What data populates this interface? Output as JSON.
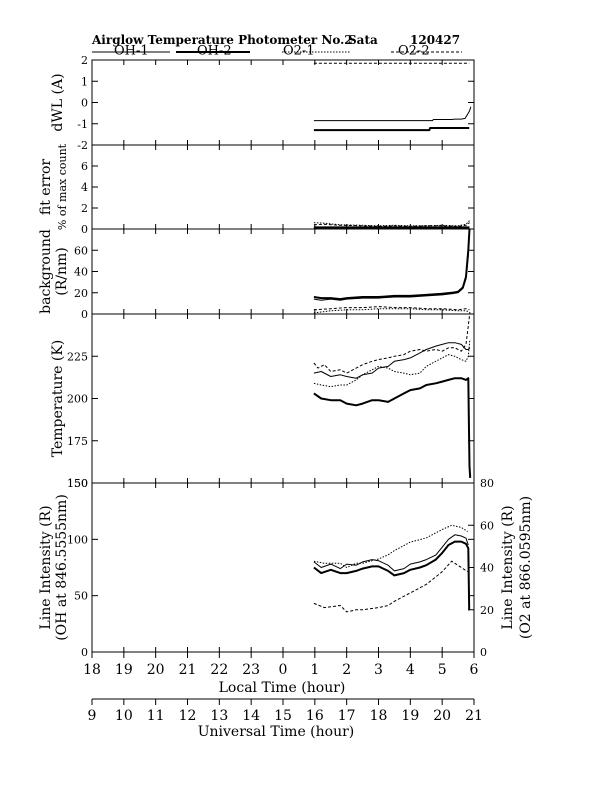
{
  "header": {
    "title": "Airglow Temperature Photometer No.2",
    "station": "Sata",
    "date_code": "120427"
  },
  "legend": [
    {
      "label": "OH-1",
      "style": "solid",
      "width": 1
    },
    {
      "label": "OH-2",
      "style": "solid",
      "width": 2
    },
    {
      "label": "O2-1",
      "style": "dotted",
      "width": 1
    },
    {
      "label": "O2-2",
      "style": "dashed",
      "width": 1
    }
  ],
  "colors": {
    "ink": "#000000",
    "background": "#ffffff"
  },
  "chart_data": [
    {
      "type": "line",
      "panel": "dwl",
      "ylabel": "dWL (A)",
      "ylim": [
        -2,
        2
      ],
      "yticks": [
        "-2",
        "-1",
        "0",
        "1",
        "2"
      ],
      "series": [
        {
          "name": "OH-1",
          "x": [
            24.97,
            26.5,
            27.5,
            28.5,
            28.7,
            28.72,
            29.3,
            29.4,
            29.6,
            29.72,
            29.8,
            29.86,
            29.9
          ],
          "y": [
            -0.85,
            -0.85,
            -0.85,
            -0.85,
            -0.85,
            -0.8,
            -0.8,
            -0.78,
            -0.78,
            -0.75,
            -0.55,
            -0.4,
            -0.2
          ]
        },
        {
          "name": "OH-2",
          "x": [
            24.97,
            26.5,
            27.5,
            28.3,
            28.6,
            28.62,
            29.2,
            29.6,
            29.75,
            29.85
          ],
          "y": [
            -1.3,
            -1.3,
            -1.3,
            -1.3,
            -1.3,
            -1.2,
            -1.2,
            -1.2,
            -1.2,
            -1.2
          ]
        },
        {
          "name": "O2-1",
          "x": [
            24.97,
            26.5,
            28.0,
            29.5,
            29.85
          ],
          "y": [
            2.0,
            2.0,
            2.0,
            2.0,
            2.0
          ]
        },
        {
          "name": "O2-2",
          "x": [
            24.97,
            26.5,
            28.0,
            29.5,
            29.85
          ],
          "y": [
            1.85,
            1.85,
            1.85,
            1.85,
            1.85
          ]
        }
      ]
    },
    {
      "type": "line",
      "panel": "fit-error",
      "ylabel": "fit error",
      "ylabel2": "% of max count",
      "ylim": [
        0,
        8
      ],
      "yticks": [
        "0",
        "2",
        "4",
        "6"
      ],
      "series": [
        {
          "name": "OH-1",
          "x": [
            24.97,
            26.0,
            27.0,
            28.0,
            29.0,
            29.6,
            29.8,
            29.86
          ],
          "y": [
            0.1,
            0.1,
            0.1,
            0.1,
            0.1,
            0.1,
            0.1,
            0.1
          ]
        },
        {
          "name": "OH-2",
          "x": [
            24.97,
            26.0,
            27.0,
            28.0,
            29.0,
            29.6,
            29.8,
            29.86
          ],
          "y": [
            0.15,
            0.15,
            0.15,
            0.15,
            0.15,
            0.15,
            0.15,
            0.15
          ]
        },
        {
          "name": "O2-1",
          "x": [
            24.97,
            25.3,
            25.8,
            26.5,
            27.0,
            27.5,
            28.0,
            28.5,
            29.0,
            29.5,
            29.75,
            29.86
          ],
          "y": [
            0.6,
            0.55,
            0.4,
            0.35,
            0.3,
            0.35,
            0.3,
            0.3,
            0.35,
            0.3,
            0.45,
            0.8
          ]
        },
        {
          "name": "O2-2",
          "x": [
            24.97,
            25.3,
            25.8,
            26.5,
            27.0,
            27.5,
            28.0,
            28.5,
            29.0,
            29.5,
            29.75,
            29.86
          ],
          "y": [
            0.4,
            0.45,
            0.35,
            0.3,
            0.25,
            0.3,
            0.25,
            0.3,
            0.3,
            0.25,
            0.35,
            0.6
          ]
        }
      ]
    },
    {
      "type": "line",
      "panel": "background",
      "ylabel": "background",
      "ylabel2": "(R/nm)",
      "ylim": [
        0,
        80
      ],
      "yticks": [
        "0",
        "20",
        "40",
        "60"
      ],
      "series": [
        {
          "name": "OH-1",
          "x": [
            24.97,
            25.2,
            25.5,
            25.8,
            26.0,
            26.5,
            27.0,
            27.5,
            28.0,
            28.5,
            29.0,
            29.3,
            29.5,
            29.65,
            29.75,
            29.82,
            29.86
          ],
          "y": [
            14,
            13,
            14,
            13,
            14,
            15,
            15,
            16,
            16,
            17,
            18,
            19,
            20,
            24,
            33,
            55,
            80
          ]
        },
        {
          "name": "OH-2",
          "x": [
            24.97,
            25.2,
            25.5,
            25.8,
            26.0,
            26.5,
            27.0,
            27.5,
            28.0,
            28.5,
            29.0,
            29.3,
            29.5,
            29.65,
            29.75,
            29.82,
            29.86
          ],
          "y": [
            16,
            15,
            15,
            14,
            15,
            16,
            16,
            17,
            17,
            18,
            19,
            20,
            21,
            25,
            35,
            60,
            80
          ]
        },
        {
          "name": "O2-1",
          "x": [
            24.97,
            25.5,
            26.0,
            26.5,
            27.0,
            27.5,
            28.0,
            28.5,
            29.0,
            29.5,
            29.75,
            29.86
          ],
          "y": [
            1,
            3,
            4,
            4,
            5,
            5,
            5,
            4,
            4,
            3,
            3,
            2
          ]
        },
        {
          "name": "O2-2",
          "x": [
            24.97,
            25.5,
            26.0,
            26.5,
            27.0,
            27.5,
            28.0,
            28.5,
            29.0,
            29.5,
            29.75,
            29.86
          ],
          "y": [
            4,
            5,
            6,
            6,
            7,
            6,
            6,
            5,
            5,
            4,
            5,
            4
          ]
        }
      ]
    },
    {
      "type": "line",
      "panel": "temperature",
      "ylabel": "Temperature (K)",
      "ylim": [
        150,
        250
      ],
      "yticks": [
        "150",
        "175",
        "200",
        "225"
      ],
      "series": [
        {
          "name": "OH-1",
          "x": [
            24.97,
            25.2,
            25.5,
            25.8,
            26.0,
            26.3,
            26.5,
            26.8,
            27.0,
            27.3,
            27.5,
            27.8,
            28.0,
            28.3,
            28.5,
            28.8,
            29.0,
            29.2,
            29.4,
            29.6,
            29.75,
            29.82,
            29.87
          ],
          "y": [
            215,
            216,
            213,
            214,
            213,
            212,
            214,
            215,
            218,
            219,
            222,
            223,
            224,
            227,
            229,
            231,
            232,
            233,
            233,
            232,
            229,
            229,
            230
          ]
        },
        {
          "name": "OH-2",
          "x": [
            24.97,
            25.2,
            25.5,
            25.8,
            26.0,
            26.3,
            26.5,
            26.8,
            27.0,
            27.3,
            27.5,
            27.8,
            28.0,
            28.3,
            28.5,
            28.8,
            29.0,
            29.2,
            29.4,
            29.6,
            29.75,
            29.82,
            29.84,
            29.86,
            29.88
          ],
          "y": [
            203,
            200,
            199,
            199,
            197,
            196,
            197,
            199,
            199,
            198,
            200,
            203,
            205,
            206,
            208,
            209,
            210,
            211,
            212,
            212,
            211,
            212,
            185,
            160,
            153
          ]
        },
        {
          "name": "O2-1",
          "x": [
            24.97,
            25.2,
            25.5,
            25.8,
            26.0,
            26.3,
            26.5,
            26.8,
            27.0,
            27.3,
            27.5,
            27.8,
            28.0,
            28.3,
            28.5,
            28.8,
            29.0,
            29.2,
            29.4,
            29.6,
            29.75,
            29.82,
            29.87
          ],
          "y": [
            209,
            208,
            207,
            208,
            208,
            211,
            214,
            217,
            219,
            218,
            216,
            215,
            214,
            215,
            219,
            222,
            224,
            226,
            225,
            223,
            222,
            225,
            235
          ]
        },
        {
          "name": "O2-2",
          "x": [
            24.97,
            25.1,
            25.3,
            25.5,
            25.8,
            26.0,
            26.3,
            26.5,
            26.8,
            27.0,
            27.3,
            27.5,
            27.8,
            28.0,
            28.3,
            28.5,
            28.8,
            29.0,
            29.2,
            29.4,
            29.6,
            29.75,
            29.82,
            29.87
          ],
          "y": [
            221,
            218,
            220,
            216,
            217,
            215,
            218,
            220,
            222,
            223,
            224,
            225,
            226,
            228,
            229,
            228,
            229,
            228,
            230,
            230,
            228,
            232,
            243,
            252
          ]
        }
      ]
    },
    {
      "type": "line",
      "panel": "line-intensity",
      "ylabel": "Line Intensity (R)",
      "ylabel2": "(OH at 846.5555nm)",
      "ylim": [
        0,
        150
      ],
      "yticks": [
        "0",
        "50",
        "100",
        "150"
      ],
      "ylabel_right": "Line Intensity (R)",
      "ylabel_right2": "(O2 at 866.0595nm)",
      "ylim_right": [
        0,
        80
      ],
      "yticks_right": [
        "0",
        "20",
        "40",
        "60",
        "80"
      ],
      "series": [
        {
          "name": "OH-1",
          "axis": "left",
          "x": [
            24.97,
            25.2,
            25.5,
            25.8,
            26.0,
            26.3,
            26.5,
            26.8,
            27.0,
            27.3,
            27.5,
            27.8,
            28.0,
            28.3,
            28.5,
            28.8,
            29.0,
            29.2,
            29.4,
            29.6,
            29.75,
            29.82
          ],
          "y": [
            80,
            75,
            78,
            74,
            78,
            77,
            80,
            82,
            81,
            77,
            72,
            74,
            78,
            80,
            82,
            86,
            93,
            100,
            104,
            103,
            101,
            95
          ]
        },
        {
          "name": "OH-2",
          "axis": "left",
          "x": [
            24.97,
            25.2,
            25.5,
            25.8,
            26.0,
            26.3,
            26.5,
            26.8,
            27.0,
            27.3,
            27.5,
            27.8,
            28.0,
            28.3,
            28.5,
            28.8,
            29.0,
            29.2,
            29.4,
            29.6,
            29.75,
            29.82,
            29.85
          ],
          "y": [
            75,
            70,
            73,
            70,
            70,
            72,
            74,
            76,
            76,
            72,
            68,
            70,
            73,
            75,
            77,
            82,
            88,
            95,
            98,
            98,
            96,
            92,
            37
          ]
        },
        {
          "name": "O2-1",
          "axis": "right",
          "x": [
            24.97,
            25.3,
            25.8,
            26.0,
            26.3,
            26.5,
            27.0,
            27.3,
            27.5,
            28.0,
            28.5,
            29.0,
            29.3,
            29.6,
            29.8
          ],
          "y": [
            43,
            42,
            42,
            40,
            42,
            42,
            44,
            46,
            48,
            52,
            54,
            58,
            60,
            59,
            57
          ]
        },
        {
          "name": "O2-2",
          "axis": "right",
          "x": [
            24.97,
            25.3,
            25.8,
            26.0,
            26.3,
            26.5,
            27.0,
            27.3,
            27.5,
            28.0,
            28.5,
            29.0,
            29.3,
            29.6,
            29.8
          ],
          "y": [
            23,
            21,
            22,
            19,
            20,
            20,
            21,
            22,
            24,
            28,
            32,
            38,
            43,
            40,
            38
          ]
        }
      ]
    }
  ],
  "time_axes": {
    "local": {
      "label": "Local Time (hour)",
      "ticks": [
        "18",
        "19",
        "20",
        "21",
        "22",
        "23",
        "0",
        "1",
        "2",
        "3",
        "4",
        "5",
        "6"
      ]
    },
    "universal": {
      "label": "Universal Time (hour)",
      "ticks": [
        "9",
        "10",
        "11",
        "12",
        "13",
        "14",
        "15",
        "16",
        "17",
        "18",
        "19",
        "20",
        "21"
      ]
    }
  }
}
